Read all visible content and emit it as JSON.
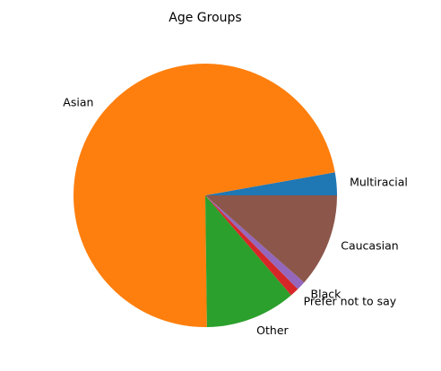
{
  "chart_data": {
    "type": "pie",
    "title": "Age Groups",
    "start_angle_deg": 0,
    "direction": "counterclockwise",
    "slices": [
      {
        "label": "Multiracial",
        "value": 2.8,
        "color": "#1f77b4"
      },
      {
        "label": "Asian",
        "value": 72.4,
        "color": "#ff7f0e"
      },
      {
        "label": "Other",
        "value": 11.1,
        "color": "#2ca02c"
      },
      {
        "label": "Prefer not to say",
        "value": 1.1,
        "color": "#d62728"
      },
      {
        "label": "Black",
        "value": 1.1,
        "color": "#9467bd"
      },
      {
        "label": "Caucasian",
        "value": 11.5,
        "color": "#8c564b"
      }
    ]
  }
}
